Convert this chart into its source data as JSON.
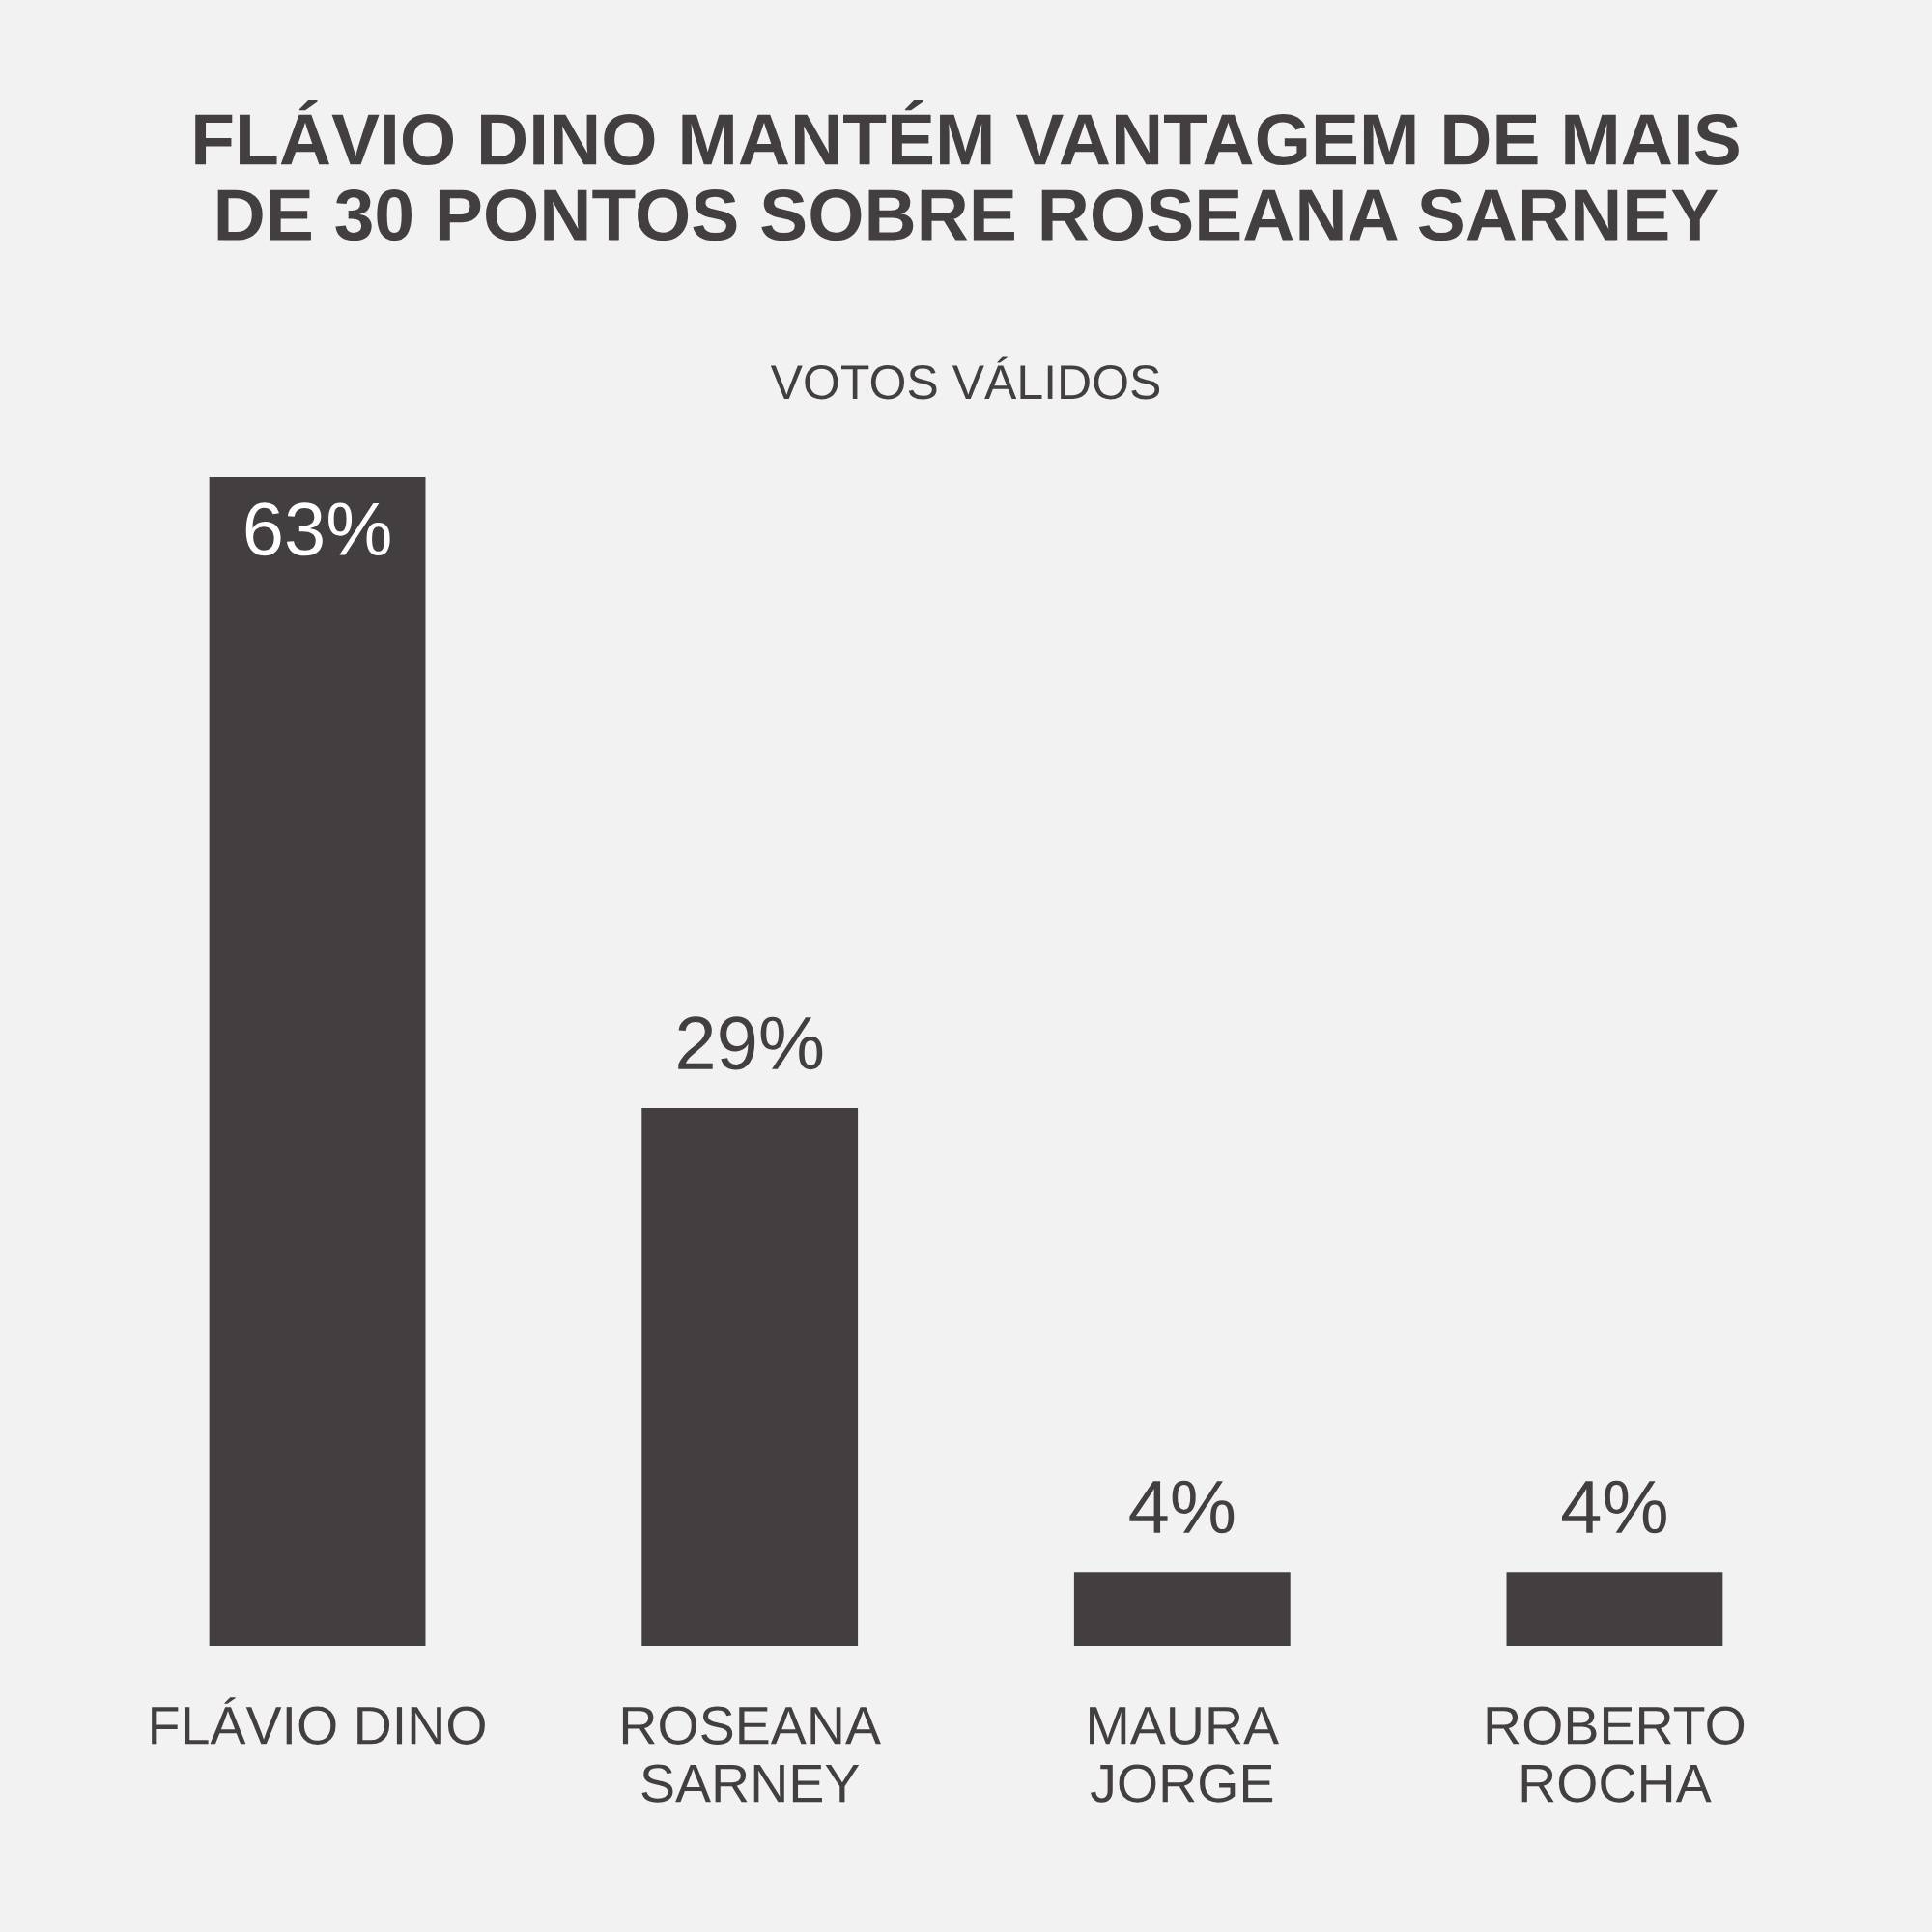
{
  "chart_data": {
    "type": "bar",
    "title": "FLÁVIO DINO MANTÉM VANTAGEM DE MAIS\nDE 30 PONTOS SOBRE ROSEANA SARNEY",
    "subtitle": "VOTOS VÁLIDOS",
    "categories": [
      "FLÁVIO DINO",
      "ROSEANA\nSARNEY",
      "MAURA\nJORGE",
      "ROBERTO\nROCHA"
    ],
    "values": [
      63,
      29,
      4,
      4
    ],
    "value_labels": [
      "63%",
      "29%",
      "4%",
      "4%"
    ],
    "color": "#433f40",
    "grid": false,
    "legend": false
  }
}
